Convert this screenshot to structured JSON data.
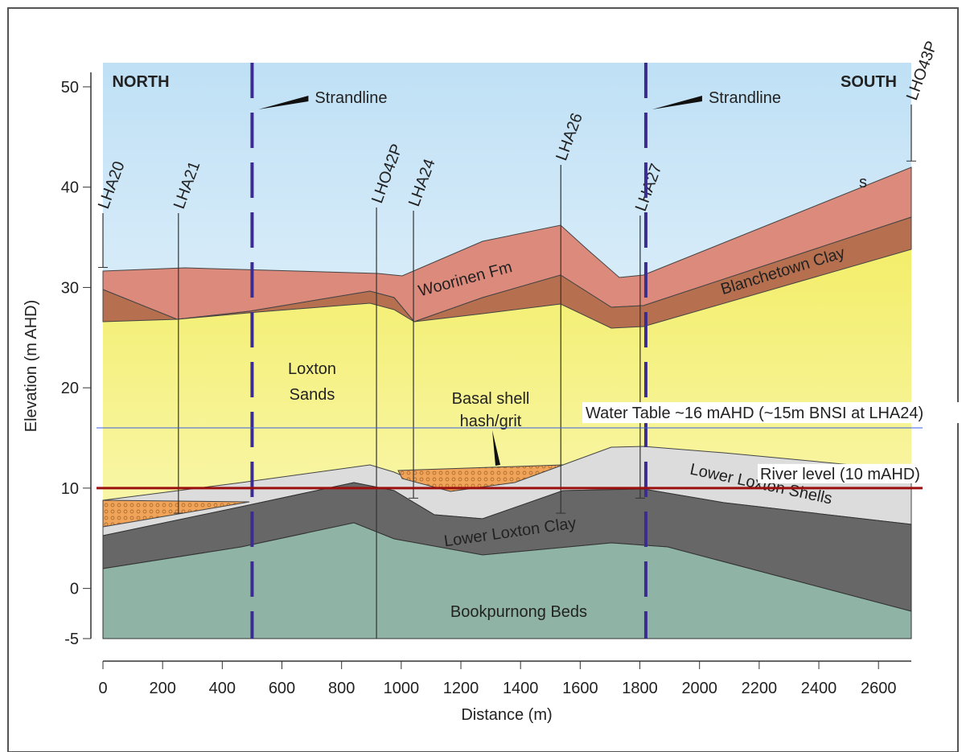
{
  "chart_data": {
    "type": "cross-section",
    "x_label": "Distance (m)",
    "y_label": "Elevation  (m AHD)",
    "xlim": [
      0,
      2710
    ],
    "ylim": [
      -5,
      52
    ],
    "xticks": [
      0,
      200,
      400,
      600,
      800,
      1000,
      1200,
      1400,
      1600,
      1800,
      2000,
      2200,
      2400,
      2600
    ],
    "yticks": [
      -5,
      0,
      10,
      20,
      30,
      40,
      50
    ],
    "directions": [
      "NORTH",
      "SOUTH"
    ],
    "strandlines": [
      {
        "label": "Strandline",
        "x": 500
      },
      {
        "label": "Strandline",
        "x": 1820
      }
    ],
    "boreholes": [
      {
        "name": "LHA20",
        "x": 0,
        "bottom": 32
      },
      {
        "name": "LHA21",
        "x": 253,
        "bottom": 7.5
      },
      {
        "name": "LHO42P",
        "x": 917,
        "bottom": -5
      },
      {
        "name": "LHA24",
        "x": 1041,
        "bottom": 9
      },
      {
        "name": "LHA26",
        "x": 1535,
        "bottom": 7.5
      },
      {
        "name": "LHA27",
        "x": 1801,
        "bottom": 9
      },
      {
        "name": "LHO43P",
        "x": 2710,
        "bottom": 42.6
      }
    ],
    "layers": [
      "Woorinen   Fm",
      "Blanchetown Clay",
      [
        "Loxton",
        "Sands"
      ],
      [
        "Basal shell",
        "hash/grit"
      ],
      "Lower  Loxton  Shells",
      "Lower   Loxton   Clay",
      "Bookpurnong Beds"
    ],
    "surface_note": "s",
    "water_table": {
      "label": "Water Table ~16 mAHD (~15m BNSI at LHA24)",
      "value": 16,
      "color": "#3a5fe0"
    },
    "river_level": {
      "label": "River level (10 mAHD)",
      "value": 10,
      "color": "#9b0f0f"
    }
  }
}
